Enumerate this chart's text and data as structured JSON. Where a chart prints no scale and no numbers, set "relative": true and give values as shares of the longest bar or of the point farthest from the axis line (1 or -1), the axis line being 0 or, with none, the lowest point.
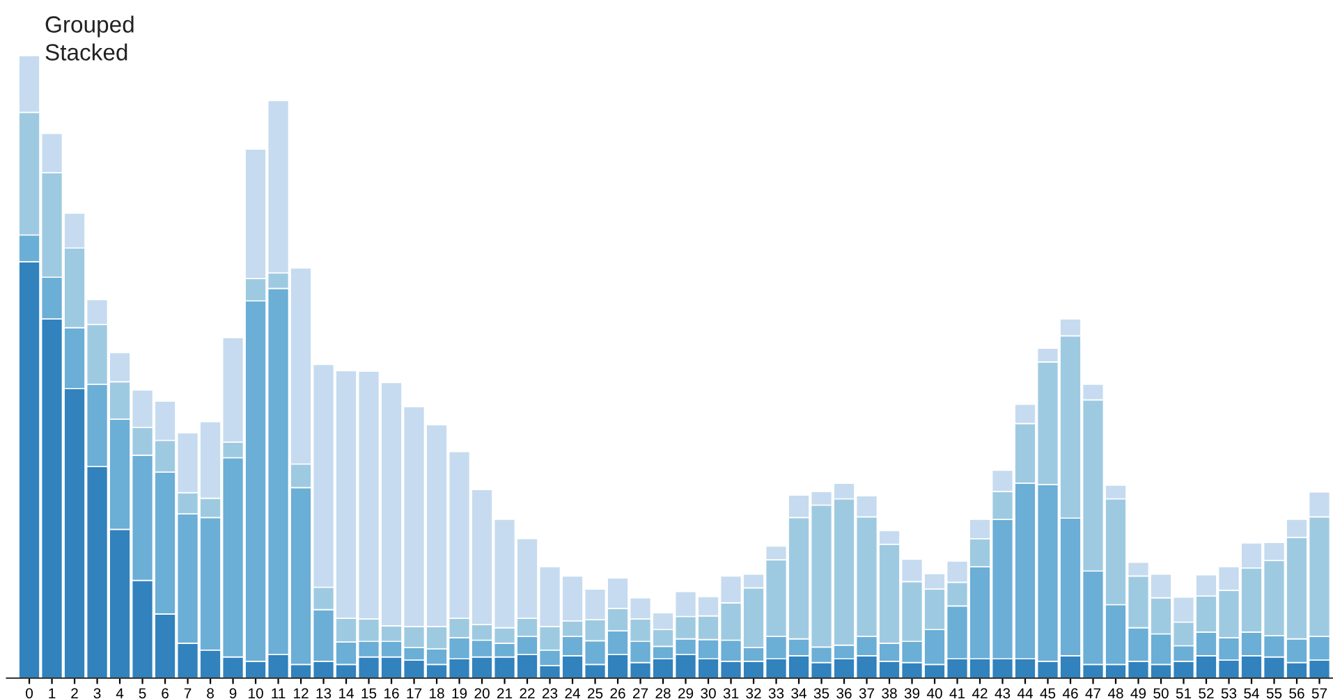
{
  "chart_data": {
    "type": "bar",
    "stacked": true,
    "relative": true,
    "categories": [
      "0",
      "1",
      "2",
      "3",
      "4",
      "5",
      "6",
      "7",
      "8",
      "9",
      "10",
      "11",
      "12",
      "13",
      "14",
      "15",
      "16",
      "17",
      "18",
      "19",
      "20",
      "21",
      "22",
      "23",
      "24",
      "25",
      "26",
      "27",
      "28",
      "29",
      "30",
      "31",
      "32",
      "33",
      "34",
      "35",
      "36",
      "37",
      "38",
      "39",
      "40",
      "41",
      "42",
      "43",
      "44",
      "45",
      "46",
      "47",
      "48",
      "49",
      "50",
      "51",
      "52",
      "53",
      "54",
      "55",
      "56",
      "57"
    ],
    "series": [
      {
        "color": "#3182bd",
        "values": [
          0.669,
          0.577,
          0.465,
          0.34,
          0.239,
          0.157,
          0.103,
          0.056,
          0.045,
          0.034,
          0.027,
          0.038,
          0.022,
          0.027,
          0.022,
          0.034,
          0.034,
          0.029,
          0.022,
          0.031,
          0.034,
          0.034,
          0.038,
          0.02,
          0.036,
          0.022,
          0.038,
          0.025,
          0.031,
          0.038,
          0.031,
          0.027,
          0.027,
          0.031,
          0.036,
          0.025,
          0.031,
          0.036,
          0.027,
          0.025,
          0.022,
          0.031,
          0.031,
          0.031,
          0.031,
          0.027,
          0.036,
          0.022,
          0.022,
          0.027,
          0.022,
          0.027,
          0.036,
          0.029,
          0.036,
          0.034,
          0.025,
          0.029
        ]
      },
      {
        "color": "#6baed6",
        "values": [
          0.043,
          0.067,
          0.098,
          0.132,
          0.177,
          0.201,
          0.228,
          0.208,
          0.213,
          0.32,
          0.579,
          0.588,
          0.284,
          0.083,
          0.036,
          0.025,
          0.025,
          0.02,
          0.025,
          0.034,
          0.027,
          0.022,
          0.029,
          0.025,
          0.031,
          0.038,
          0.038,
          0.034,
          0.02,
          0.025,
          0.031,
          0.034,
          0.022,
          0.036,
          0.027,
          0.025,
          0.022,
          0.031,
          0.029,
          0.034,
          0.056,
          0.085,
          0.148,
          0.224,
          0.282,
          0.284,
          0.221,
          0.15,
          0.096,
          0.054,
          0.049,
          0.025,
          0.038,
          0.036,
          0.038,
          0.034,
          0.038,
          0.038
        ]
      },
      {
        "color": "#9ecae1",
        "values": [
          0.197,
          0.168,
          0.128,
          0.096,
          0.06,
          0.045,
          0.051,
          0.034,
          0.031,
          0.025,
          0.036,
          0.025,
          0.038,
          0.036,
          0.038,
          0.036,
          0.025,
          0.034,
          0.036,
          0.031,
          0.025,
          0.025,
          0.029,
          0.038,
          0.025,
          0.034,
          0.036,
          0.036,
          0.027,
          0.036,
          0.038,
          0.06,
          0.096,
          0.123,
          0.195,
          0.228,
          0.235,
          0.192,
          0.159,
          0.096,
          0.065,
          0.038,
          0.045,
          0.045,
          0.096,
          0.197,
          0.293,
          0.275,
          0.17,
          0.083,
          0.058,
          0.038,
          0.058,
          0.076,
          0.103,
          0.121,
          0.163,
          0.192
        ]
      },
      {
        "color": "#c6dbef",
        "values": [
          0.091,
          0.063,
          0.056,
          0.04,
          0.047,
          0.06,
          0.063,
          0.096,
          0.123,
          0.168,
          0.208,
          0.277,
          0.315,
          0.358,
          0.398,
          0.398,
          0.391,
          0.353,
          0.324,
          0.268,
          0.217,
          0.174,
          0.128,
          0.096,
          0.072,
          0.049,
          0.049,
          0.034,
          0.027,
          0.04,
          0.031,
          0.043,
          0.022,
          0.022,
          0.036,
          0.022,
          0.025,
          0.034,
          0.022,
          0.036,
          0.025,
          0.034,
          0.031,
          0.034,
          0.031,
          0.022,
          0.027,
          0.025,
          0.022,
          0.022,
          0.038,
          0.04,
          0.034,
          0.038,
          0.04,
          0.029,
          0.029,
          0.04
        ]
      }
    ],
    "annotations": [
      "Grouped",
      "Stacked"
    ],
    "grid": false,
    "legend": false
  }
}
